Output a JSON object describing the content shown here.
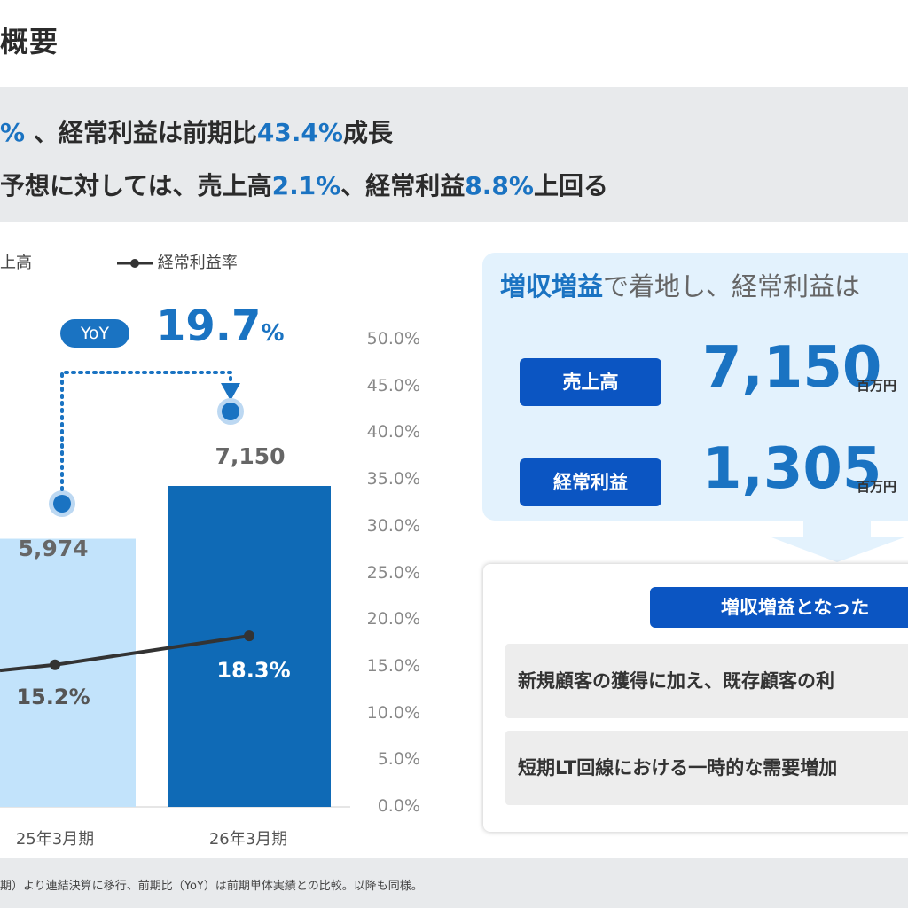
{
  "header": {
    "title": "概要"
  },
  "summary": {
    "line1": {
      "lead": "%",
      "mid": "、経常利益は前期比",
      "value": "43.4%",
      "tail": "成長"
    },
    "line2": {
      "lead": "予想に対しては、売上高",
      "value1": "2.1%",
      "mid": "、経常利益",
      "value2": "8.8%",
      "tail": "上回る"
    }
  },
  "legend": {
    "bar_label": "上高",
    "line_label": "経常利益率"
  },
  "yoy": {
    "pill": "YoY",
    "value": "19.7",
    "unit": "%"
  },
  "chart_data": {
    "type": "bar",
    "categories": [
      "25年3月期",
      "26年3月期"
    ],
    "series": [
      {
        "name": "上高",
        "values": [
          5974,
          7150
        ],
        "value_labels": [
          "5,974",
          "7,150"
        ]
      },
      {
        "name": "経常利益率",
        "type": "line",
        "values": [
          15.2,
          18.3
        ],
        "value_labels": [
          "15.2%",
          "18.3%"
        ]
      }
    ],
    "y2_ticks": [
      "0.0%",
      "5.0%",
      "10.0%",
      "15.0%",
      "20.0%",
      "25.0%",
      "30.0%",
      "35.0%",
      "40.0%",
      "45.0%",
      "50.0%"
    ],
    "y2lim": [
      0,
      50
    ],
    "colors": {
      "bar_prev": "#c2e3fb",
      "bar_curr": "#0f6ab6",
      "line": "#333333",
      "accent": "#1a73c2"
    }
  },
  "kpi": {
    "headline_bold": "増収増益",
    "headline_rest": "で着地し、経常利益は",
    "items": [
      {
        "label": "売上高",
        "value": "7,150",
        "unit": "百万円"
      },
      {
        "label": "経常利益",
        "value": "1,305",
        "unit": "百万円"
      }
    ]
  },
  "reasons": {
    "title": "増収増益となった",
    "items": [
      "新規顧客の獲得に加え、既存顧客の利",
      "短期LT回線における一時的な需要増加"
    ]
  },
  "footnote": "期）より連結決算に移行、前期比（YoY）は前期単体実績との比較。以降も同様。"
}
